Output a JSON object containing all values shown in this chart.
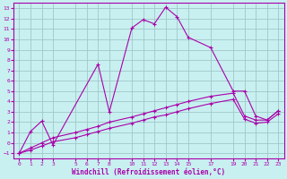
{
  "title": "",
  "xlabel": "Windchill (Refroidissement éolien,°C)",
  "ylabel": "",
  "bg_color": "#c8f0f0",
  "grid_color": "#a0c8c8",
  "line_color": "#aa00aa",
  "ylim": [
    -1.5,
    13.5
  ],
  "xlim": [
    -0.5,
    23.5
  ],
  "yticks": [
    -1,
    0,
    1,
    2,
    3,
    4,
    5,
    6,
    7,
    8,
    9,
    10,
    11,
    12,
    13
  ],
  "xticks": [
    0,
    1,
    2,
    3,
    5,
    6,
    7,
    8,
    10,
    11,
    12,
    13,
    14,
    15,
    17,
    19,
    20,
    21,
    22,
    23
  ],
  "line1_x": [
    0,
    1,
    2,
    3,
    7,
    8,
    10,
    11,
    12,
    13,
    14,
    15,
    17,
    19,
    20,
    21,
    22,
    23
  ],
  "line1_y": [
    -1,
    1.1,
    2.1,
    -0.2,
    7.6,
    3.0,
    11.1,
    11.9,
    11.5,
    13.1,
    12.2,
    10.2,
    9.2,
    5.0,
    5.0,
    2.6,
    2.2,
    3.1
  ],
  "line2_x": [
    0,
    1,
    2,
    3,
    5,
    6,
    7,
    8,
    10,
    11,
    12,
    13,
    14,
    15,
    17,
    19,
    20,
    21,
    22,
    23
  ],
  "line2_y": [
    -1,
    -0.5,
    0.0,
    0.5,
    1.0,
    1.3,
    1.6,
    2.0,
    2.5,
    2.8,
    3.1,
    3.4,
    3.7,
    4.0,
    4.5,
    4.8,
    2.6,
    2.2,
    2.2,
    3.1
  ],
  "line3_x": [
    0,
    1,
    2,
    3,
    5,
    6,
    7,
    8,
    10,
    11,
    12,
    13,
    14,
    15,
    17,
    19,
    20,
    21,
    22,
    23
  ],
  "line3_y": [
    -1,
    -0.7,
    -0.3,
    0.1,
    0.5,
    0.8,
    1.1,
    1.4,
    1.9,
    2.2,
    2.5,
    2.7,
    3.0,
    3.3,
    3.8,
    4.2,
    2.3,
    1.9,
    2.0,
    2.8
  ]
}
